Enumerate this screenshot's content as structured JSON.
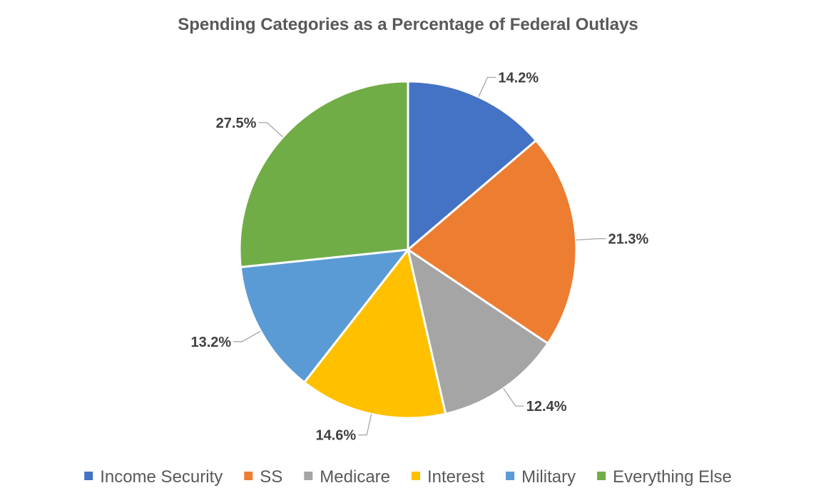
{
  "chart_data": {
    "type": "pie",
    "title": "Spending Categories as a Percentage of Federal Outlays",
    "categories": [
      "Income Security",
      "SS",
      "Medicare",
      "Interest",
      "Military",
      "Everything Else"
    ],
    "values": [
      14.2,
      21.3,
      12.4,
      14.6,
      13.2,
      27.5
    ],
    "labels": [
      "14.2%",
      "21.3%",
      "12.4%",
      "14.6%",
      "13.2%",
      "27.5%"
    ],
    "colors": [
      "#4472c4",
      "#ed7d31",
      "#a5a5a5",
      "#ffc000",
      "#5b9bd5",
      "#70ad47"
    ],
    "legend_position": "bottom",
    "start_angle_deg": 0,
    "direction": "clockwise"
  }
}
